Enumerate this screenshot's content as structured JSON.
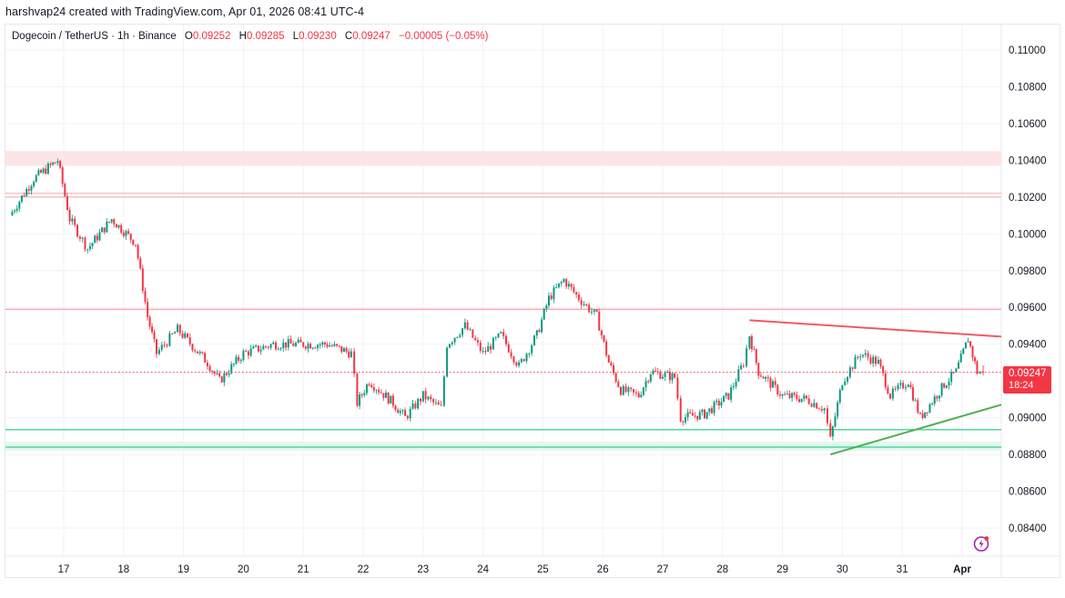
{
  "header": {
    "credit": "harshvap24 created with TradingView.com, Apr 01, 2026 08:41 UTC-4"
  },
  "legend": {
    "symbol": "Dogecoin / TetherUS · 1h · Binance",
    "open_label": "O",
    "open": "0.09252",
    "high_label": "H",
    "high": "0.09285",
    "low_label": "L",
    "low": "0.09230",
    "close_label": "C",
    "close": "0.09247",
    "change": "−0.00005 (−0.05%)"
  },
  "price_tag": {
    "price": "0.09247",
    "countdown": "18:24",
    "color": "#f23645"
  },
  "icons": {
    "bolt": "lightning-alert-icon"
  },
  "colors": {
    "up": "#089981",
    "down": "#f23645",
    "resistance_zone": "#fde5e6",
    "support_line": "#4cd99a",
    "support_zone": "#e4f8ee",
    "grid": "#f0f2f5"
  },
  "chart_data": {
    "type": "candlestick",
    "title": "Dogecoin / TetherUS · 1h · Binance",
    "xlabel": "",
    "ylabel": "",
    "ylim": [
      0.083,
      0.1112
    ],
    "grid": true,
    "y_ticks": [
      "0.11000",
      "0.10800",
      "0.10600",
      "0.10400",
      "0.10200",
      "0.10000",
      "0.09800",
      "0.09600",
      "0.09400",
      "0.09000",
      "0.08800",
      "0.08600",
      "0.08400"
    ],
    "x_ticks": [
      "17",
      "18",
      "19",
      "20",
      "21",
      "22",
      "23",
      "24",
      "25",
      "26",
      "27",
      "28",
      "29",
      "30",
      "31",
      "Apr"
    ],
    "current_price": 0.09247,
    "ohlc_last": {
      "open": 0.09252,
      "high": 0.09285,
      "low": 0.0923,
      "close": 0.09247
    },
    "key_path": [
      {
        "day": 16.1,
        "price": 0.101
      },
      {
        "day": 16.5,
        "price": 0.103
      },
      {
        "day": 16.9,
        "price": 0.104
      },
      {
        "day": 17.1,
        "price": 0.1008
      },
      {
        "day": 17.4,
        "price": 0.0992
      },
      {
        "day": 17.8,
        "price": 0.1008
      },
      {
        "day": 18.2,
        "price": 0.0995
      },
      {
        "day": 18.4,
        "price": 0.0955
      },
      {
        "day": 18.55,
        "price": 0.0935
      },
      {
        "day": 18.9,
        "price": 0.0948
      },
      {
        "day": 19.4,
        "price": 0.093
      },
      {
        "day": 19.6,
        "price": 0.092
      },
      {
        "day": 20.0,
        "price": 0.0935
      },
      {
        "day": 20.5,
        "price": 0.094
      },
      {
        "day": 21.0,
        "price": 0.094
      },
      {
        "day": 21.4,
        "price": 0.094
      },
      {
        "day": 21.8,
        "price": 0.0935
      },
      {
        "day": 21.9,
        "price": 0.0908
      },
      {
        "day": 22.1,
        "price": 0.092
      },
      {
        "day": 22.5,
        "price": 0.0908
      },
      {
        "day": 22.7,
        "price": 0.09
      },
      {
        "day": 23.0,
        "price": 0.0912
      },
      {
        "day": 23.3,
        "price": 0.0905
      },
      {
        "day": 23.4,
        "price": 0.094
      },
      {
        "day": 23.7,
        "price": 0.095
      },
      {
        "day": 24.0,
        "price": 0.0935
      },
      {
        "day": 24.3,
        "price": 0.0945
      },
      {
        "day": 24.6,
        "price": 0.0928
      },
      {
        "day": 24.9,
        "price": 0.0945
      },
      {
        "day": 25.1,
        "price": 0.0965
      },
      {
        "day": 25.35,
        "price": 0.0975
      },
      {
        "day": 25.6,
        "price": 0.0965
      },
      {
        "day": 25.9,
        "price": 0.0955
      },
      {
        "day": 26.1,
        "price": 0.093
      },
      {
        "day": 26.3,
        "price": 0.0915
      },
      {
        "day": 26.6,
        "price": 0.0912
      },
      {
        "day": 26.8,
        "price": 0.0925
      },
      {
        "day": 27.2,
        "price": 0.0922
      },
      {
        "day": 27.3,
        "price": 0.09
      },
      {
        "day": 27.7,
        "price": 0.0902
      },
      {
        "day": 28.1,
        "price": 0.0912
      },
      {
        "day": 28.35,
        "price": 0.093
      },
      {
        "day": 28.45,
        "price": 0.0945
      },
      {
        "day": 28.6,
        "price": 0.0925
      },
      {
        "day": 29.0,
        "price": 0.0912
      },
      {
        "day": 29.4,
        "price": 0.091
      },
      {
        "day": 29.7,
        "price": 0.0905
      },
      {
        "day": 29.8,
        "price": 0.0888
      },
      {
        "day": 30.0,
        "price": 0.092
      },
      {
        "day": 30.3,
        "price": 0.0935
      },
      {
        "day": 30.6,
        "price": 0.093
      },
      {
        "day": 30.8,
        "price": 0.0912
      },
      {
        "day": 31.1,
        "price": 0.092
      },
      {
        "day": 31.3,
        "price": 0.09
      },
      {
        "day": 31.7,
        "price": 0.0918
      },
      {
        "day": 31.9,
        "price": 0.0925
      },
      {
        "day": 32.1,
        "price": 0.0943
      },
      {
        "day": 32.25,
        "price": 0.0925
      },
      {
        "day": 32.35,
        "price": 0.09247
      }
    ],
    "drawings": {
      "resistance_zone": [
        0.1037,
        0.1045
      ],
      "resistance_lines": [
        0.102,
        0.1022
      ],
      "horizontal_red_line": 0.0959,
      "support_line_top": 0.08935,
      "support_zone": [
        0.0882,
        0.0887
      ],
      "support_line_bottom": 0.0884,
      "descending_trendline": {
        "from": {
          "day": 28.45,
          "price": 0.0953
        },
        "to": {
          "day": 32.7,
          "price": 0.0944
        }
      },
      "ascending_trendline": {
        "from": {
          "day": 29.8,
          "price": 0.088
        },
        "to": {
          "day": 32.7,
          "price": 0.09075
        }
      }
    }
  }
}
